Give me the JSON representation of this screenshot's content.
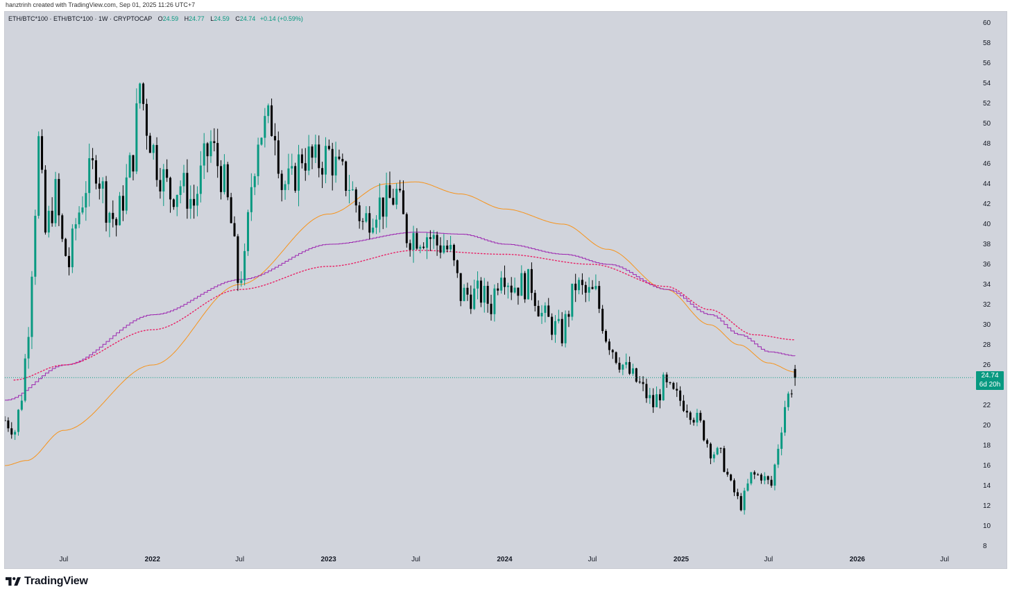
{
  "credit": "hanztrinh created with TradingView.com, Sep 01, 2025 11:26 UTC+7",
  "legend": {
    "symbol": "ETH/BTC*100 · ETH/BTC*100 · 1W · CRYPTOCAP",
    "open_label": "O",
    "open": "24.59",
    "high_label": "H",
    "high": "24.77",
    "low_label": "L",
    "low": "24.59",
    "close_label": "C",
    "close": "24.74",
    "change": "+0.14 (+0.59%)"
  },
  "price_label": {
    "price": "24.74",
    "countdown": "6d 20h"
  },
  "footer": {
    "brand": "TradingView",
    "logo_icon": "tradingview-logo-icon"
  },
  "colors": {
    "background": "#d1d4dc",
    "up": "#089981",
    "down": "#000000",
    "ma_orange": "#f7931a",
    "ma_purple": "#9c27b0",
    "ma_dotted": "#e91e63",
    "last_price_line": "#089981"
  },
  "chart_data": {
    "type": "candlestick",
    "timeframe": "1W",
    "y_axis": {
      "side": "right",
      "ticks": [
        8,
        10,
        12,
        14,
        16,
        18,
        20,
        22,
        24,
        26,
        28,
        30,
        32,
        34,
        36,
        38,
        40,
        42,
        44,
        46,
        48,
        50,
        52,
        54,
        56,
        58,
        60
      ]
    },
    "ylim": [
      6.5,
      61.5
    ],
    "x_axis_labels": [
      "Jul",
      "2022",
      "Jul",
      "2023",
      "Jul",
      "2024",
      "Jul",
      "2025",
      "Jul",
      "2026",
      "Jul"
    ],
    "x_axis_label_dates": [
      "2021-07-01",
      "2022-01-01",
      "2022-07-01",
      "2023-01-01",
      "2023-07-01",
      "2024-01-01",
      "2024-07-01",
      "2025-01-01",
      "2025-07-01",
      "2026-01-01",
      "2026-07-01"
    ],
    "xlim": [
      "2021-03-01",
      "2026-08-15"
    ],
    "grid": false,
    "last_price": 24.74,
    "candle_anchors": [
      [
        "2021-03-01",
        20.5
      ],
      [
        "2021-03-22",
        19.5
      ],
      [
        "2021-04-05",
        23
      ],
      [
        "2021-04-19",
        30
      ],
      [
        "2021-05-03",
        42
      ],
      [
        "2021-05-10",
        48
      ],
      [
        "2021-05-24",
        39
      ],
      [
        "2021-06-14",
        43
      ],
      [
        "2021-06-28",
        38
      ],
      [
        "2021-07-12",
        36
      ],
      [
        "2021-07-26",
        40
      ],
      [
        "2021-08-16",
        44
      ],
      [
        "2021-09-06",
        46
      ],
      [
        "2021-09-27",
        42
      ],
      [
        "2021-10-18",
        40
      ],
      [
        "2021-11-08",
        44
      ],
      [
        "2021-11-22",
        47
      ],
      [
        "2021-12-06",
        54
      ],
      [
        "2021-12-20",
        50
      ],
      [
        "2022-01-10",
        46
      ],
      [
        "2022-02-07",
        43
      ],
      [
        "2022-02-28",
        44
      ],
      [
        "2022-03-28",
        42
      ],
      [
        "2022-04-18",
        46
      ],
      [
        "2022-05-02",
        48
      ],
      [
        "2022-05-30",
        44
      ],
      [
        "2022-06-13",
        40
      ],
      [
        "2022-06-27",
        34.5
      ],
      [
        "2022-07-11",
        36
      ],
      [
        "2022-07-25",
        44
      ],
      [
        "2022-08-08",
        49
      ],
      [
        "2022-08-29",
        50
      ],
      [
        "2022-09-12",
        50
      ],
      [
        "2022-09-26",
        44
      ],
      [
        "2022-10-17",
        44
      ],
      [
        "2022-11-07",
        47
      ],
      [
        "2022-12-05",
        46
      ],
      [
        "2023-01-02",
        47
      ],
      [
        "2023-01-23",
        45
      ],
      [
        "2023-02-13",
        44
      ],
      [
        "2023-03-13",
        40
      ],
      [
        "2023-04-10",
        42
      ],
      [
        "2023-05-01",
        42
      ],
      [
        "2023-05-22",
        43
      ],
      [
        "2023-06-12",
        39
      ],
      [
        "2023-07-03",
        39
      ],
      [
        "2023-07-24",
        39
      ],
      [
        "2023-08-14",
        38
      ],
      [
        "2023-08-28",
        38
      ],
      [
        "2023-09-11",
        37
      ],
      [
        "2023-10-02",
        33
      ],
      [
        "2023-10-23",
        33
      ],
      [
        "2023-11-13",
        33
      ],
      [
        "2023-12-04",
        32
      ],
      [
        "2023-12-25",
        36
      ],
      [
        "2024-01-15",
        34
      ],
      [
        "2024-02-05",
        34
      ],
      [
        "2024-02-26",
        34
      ],
      [
        "2024-03-18",
        31
      ],
      [
        "2024-04-08",
        30
      ],
      [
        "2024-04-29",
        29
      ],
      [
        "2024-05-27",
        34
      ],
      [
        "2024-06-17",
        33
      ],
      [
        "2024-07-08",
        33
      ],
      [
        "2024-07-29",
        29
      ],
      [
        "2024-08-19",
        27
      ],
      [
        "2024-09-09",
        25.5
      ],
      [
        "2024-10-07",
        24
      ],
      [
        "2024-11-04",
        22
      ],
      [
        "2024-11-25",
        24
      ],
      [
        "2024-12-16",
        23
      ],
      [
        "2025-01-13",
        22
      ],
      [
        "2025-02-10",
        20
      ],
      [
        "2025-03-03",
        17.5
      ],
      [
        "2025-03-24",
        17
      ],
      [
        "2025-04-14",
        14
      ],
      [
        "2025-05-05",
        12
      ],
      [
        "2025-05-26",
        15
      ],
      [
        "2025-06-16",
        15
      ],
      [
        "2025-07-07",
        14
      ],
      [
        "2025-07-21",
        18
      ],
      [
        "2025-08-04",
        22
      ],
      [
        "2025-08-25",
        24.7
      ]
    ],
    "series": [
      {
        "style": "solid",
        "color": "#f7931a",
        "points": [
          [
            "2021-03-01",
            16
          ],
          [
            "2021-04-15",
            16.5
          ],
          [
            "2021-07-01",
            19.5
          ],
          [
            "2022-01-01",
            26
          ],
          [
            "2022-07-01",
            34
          ],
          [
            "2023-01-01",
            41
          ],
          [
            "2023-05-01",
            44
          ],
          [
            "2023-07-01",
            44.2
          ],
          [
            "2023-10-01",
            43
          ],
          [
            "2024-01-01",
            41.5
          ],
          [
            "2024-05-01",
            40
          ],
          [
            "2024-08-01",
            37.5
          ],
          [
            "2024-12-01",
            33.5
          ],
          [
            "2025-03-01",
            30
          ],
          [
            "2025-05-01",
            28
          ],
          [
            "2025-07-01",
            26.2
          ],
          [
            "2025-08-25",
            25.3
          ]
        ]
      },
      {
        "style": "stepped",
        "color": "#9c27b0",
        "points": [
          [
            "2021-03-01",
            22.5
          ],
          [
            "2021-07-01",
            26
          ],
          [
            "2022-01-01",
            31
          ],
          [
            "2022-07-01",
            34.5
          ],
          [
            "2023-01-01",
            38
          ],
          [
            "2023-07-01",
            39.2
          ],
          [
            "2023-10-01",
            39
          ],
          [
            "2024-01-01",
            38
          ],
          [
            "2024-05-01",
            37
          ],
          [
            "2024-08-01",
            36
          ],
          [
            "2024-12-01",
            33.5
          ],
          [
            "2025-03-01",
            31
          ],
          [
            "2025-05-01",
            29
          ],
          [
            "2025-07-01",
            27.3
          ],
          [
            "2025-08-25",
            26.9
          ]
        ]
      },
      {
        "style": "dotted",
        "color": "#e91e63",
        "points": [
          [
            "2021-03-20",
            24.5
          ],
          [
            "2021-07-01",
            26
          ],
          [
            "2022-01-01",
            29.5
          ],
          [
            "2022-07-01",
            33.5
          ],
          [
            "2023-01-01",
            35.8
          ],
          [
            "2023-07-01",
            37.4
          ],
          [
            "2024-01-01",
            37
          ],
          [
            "2024-07-01",
            36
          ],
          [
            "2024-12-01",
            33.8
          ],
          [
            "2025-03-01",
            31.5
          ],
          [
            "2025-06-01",
            29
          ],
          [
            "2025-08-25",
            28.5
          ]
        ]
      }
    ]
  }
}
